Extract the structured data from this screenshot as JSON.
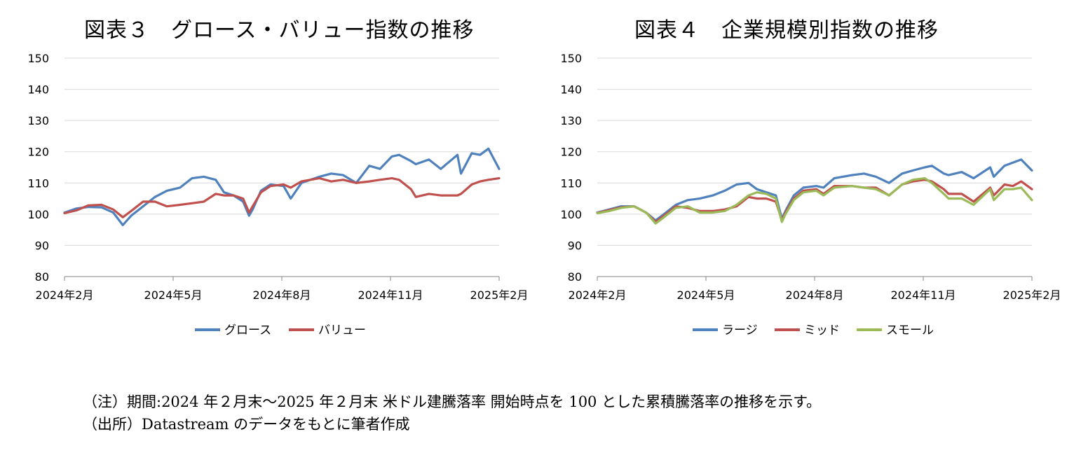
{
  "titles": {
    "left": "図表３　グロース・バリュー指数の推移",
    "right": "図表４　企業規模別指数の推移"
  },
  "notes": {
    "line1": "（注）期間:2024 年２月末～2025 年２月末 米ドル建騰落率 開始時点を 100 とした累積騰落率の推移を示す。",
    "line2": "（出所）Datastream のデータをもとに筆者作成"
  },
  "chart_data": [
    {
      "type": "line",
      "title": "図表３　グロース・バリュー指数の推移",
      "ylim": [
        80,
        150
      ],
      "yticks": [
        "80",
        "90",
        "100",
        "110",
        "120",
        "130",
        "140",
        "150"
      ],
      "xticks": [
        "2024年2月",
        "2024年5月",
        "2024年8月",
        "2024年11月",
        "2025年2月"
      ],
      "grid": true,
      "legend_position": "bottom",
      "x": [
        "2024-02-29",
        "2024-03-10",
        "2024-03-20",
        "2024-03-31",
        "2024-04-10",
        "2024-04-18",
        "2024-04-25",
        "2024-05-05",
        "2024-05-15",
        "2024-05-25",
        "2024-06-05",
        "2024-06-15",
        "2024-06-25",
        "2024-07-05",
        "2024-07-12",
        "2024-07-20",
        "2024-07-28",
        "2024-08-02",
        "2024-08-05",
        "2024-08-12",
        "2024-08-20",
        "2024-08-31",
        "2024-09-06",
        "2024-09-15",
        "2024-09-30",
        "2024-10-10",
        "2024-10-20",
        "2024-10-31",
        "2024-11-11",
        "2024-11-20",
        "2024-11-30",
        "2024-12-06",
        "2024-12-16",
        "2024-12-20",
        "2024-12-31",
        "2025-01-10",
        "2025-01-24",
        "2025-01-27",
        "2025-02-05",
        "2025-02-12",
        "2025-02-19",
        "2025-02-28"
      ],
      "series": [
        {
          "name": "グロース",
          "color": "#4f81bd",
          "values": [
            100.5,
            101.8,
            102.3,
            102.2,
            100.5,
            96.5,
            99.5,
            102.5,
            105.5,
            107.5,
            108.5,
            111.5,
            112.0,
            111.0,
            107.0,
            106.0,
            104.0,
            99.5,
            101.5,
            107.5,
            109.5,
            109.0,
            105.0,
            110.0,
            112.0,
            113.0,
            112.5,
            110.0,
            115.5,
            114.5,
            118.5,
            119.0,
            117.0,
            116.0,
            117.5,
            114.5,
            119.0,
            113.0,
            119.5,
            119.0,
            121.0,
            114.5
          ]
        },
        {
          "name": "バリュー",
          "color": "#c0504d",
          "values": [
            100.3,
            101.2,
            102.8,
            103.0,
            101.5,
            99.0,
            101.0,
            104.0,
            104.0,
            102.5,
            103.0,
            103.5,
            104.0,
            106.5,
            106.0,
            106.0,
            105.0,
            100.5,
            102.5,
            107.0,
            109.0,
            109.5,
            108.5,
            110.5,
            111.5,
            110.5,
            111.0,
            110.0,
            110.5,
            111.0,
            111.5,
            111.0,
            108.0,
            105.5,
            106.5,
            106.0,
            106.0,
            106.5,
            109.5,
            110.5,
            111.0,
            111.5
          ]
        }
      ]
    },
    {
      "type": "line",
      "title": "図表４　企業規模別指数の推移",
      "ylim": [
        80,
        150
      ],
      "yticks": [
        "80",
        "90",
        "100",
        "110",
        "120",
        "130",
        "140",
        "150"
      ],
      "xticks": [
        "2024年2月",
        "2024年5月",
        "2024年8月",
        "2024年11月",
        "2025年2月"
      ],
      "grid": true,
      "legend_position": "bottom",
      "x": [
        "2024-02-29",
        "2024-03-10",
        "2024-03-20",
        "2024-03-31",
        "2024-04-10",
        "2024-04-18",
        "2024-04-25",
        "2024-05-05",
        "2024-05-15",
        "2024-05-25",
        "2024-06-05",
        "2024-06-15",
        "2024-06-25",
        "2024-07-05",
        "2024-07-12",
        "2024-07-20",
        "2024-07-28",
        "2024-08-02",
        "2024-08-05",
        "2024-08-12",
        "2024-08-20",
        "2024-08-31",
        "2024-09-06",
        "2024-09-15",
        "2024-09-30",
        "2024-10-10",
        "2024-10-20",
        "2024-10-31",
        "2024-11-11",
        "2024-11-20",
        "2024-11-30",
        "2024-12-06",
        "2024-12-16",
        "2024-12-20",
        "2024-12-31",
        "2025-01-10",
        "2025-01-24",
        "2025-01-27",
        "2025-02-05",
        "2025-02-12",
        "2025-02-19",
        "2025-02-28"
      ],
      "series": [
        {
          "name": "ラージ",
          "color": "#4f81bd",
          "values": [
            100.5,
            101.5,
            102.5,
            102.5,
            100.5,
            98.0,
            100.0,
            103.0,
            104.5,
            105.0,
            106.0,
            107.5,
            109.5,
            110.0,
            108.0,
            107.0,
            106.0,
            98.5,
            101.0,
            106.0,
            108.5,
            109.0,
            108.5,
            111.5,
            112.5,
            113.0,
            112.0,
            110.0,
            113.0,
            114.0,
            115.0,
            115.5,
            113.0,
            112.5,
            113.5,
            111.5,
            115.0,
            112.0,
            115.5,
            116.5,
            117.5,
            114.0
          ]
        },
        {
          "name": "ミッド",
          "color": "#c0504d",
          "values": [
            100.4,
            101.3,
            102.2,
            102.5,
            100.5,
            97.5,
            99.5,
            102.5,
            102.0,
            101.0,
            101.0,
            101.5,
            102.5,
            105.5,
            105.0,
            105.0,
            104.0,
            98.0,
            100.5,
            105.0,
            107.5,
            108.0,
            106.5,
            109.0,
            109.0,
            108.5,
            108.5,
            106.0,
            109.5,
            110.5,
            111.0,
            110.5,
            108.0,
            106.5,
            106.5,
            104.0,
            108.5,
            106.0,
            109.5,
            109.0,
            110.5,
            108.0
          ]
        },
        {
          "name": "スモール",
          "color": "#9bbb59",
          "values": [
            100.3,
            101.0,
            102.0,
            102.5,
            100.5,
            97.0,
            99.0,
            102.0,
            102.5,
            100.5,
            100.5,
            101.0,
            103.0,
            106.0,
            107.0,
            106.5,
            105.0,
            97.5,
            100.0,
            104.5,
            107.0,
            107.5,
            106.0,
            108.5,
            109.0,
            108.5,
            108.0,
            106.0,
            109.5,
            111.0,
            111.5,
            110.0,
            106.5,
            105.0,
            105.0,
            103.0,
            108.0,
            104.5,
            108.0,
            108.0,
            108.5,
            104.5
          ]
        }
      ]
    }
  ]
}
